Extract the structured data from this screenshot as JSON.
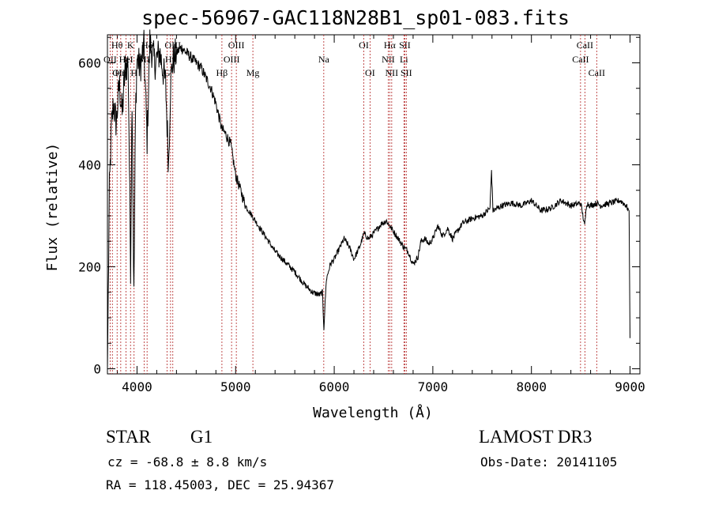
{
  "header": {
    "title": "spec-56967-GAC118N28B1_sp01-083.fits"
  },
  "info": {
    "class": "STAR",
    "subclass": "G1",
    "survey": "LAMOST DR3",
    "cz": "cz = -68.8 ± 8.8 km/s",
    "obs_date": "Obs-Date: 20141105",
    "radec": "RA = 118.45003, DEC =  25.94367"
  },
  "chart_data": {
    "type": "line",
    "title": "spec-56967-GAC118N28B1_sp01-083.fits",
    "xlabel": "Wavelength (Å)",
    "ylabel": "Flux (relative)",
    "xlim": [
      3700,
      9100
    ],
    "ylim": [
      -10,
      655
    ],
    "xticks": [
      4000,
      5000,
      6000,
      7000,
      8000,
      9000
    ],
    "yticks": [
      0,
      200,
      400,
      600
    ],
    "colors": {
      "line": "#000000",
      "marker": "#b22222"
    },
    "series": [
      {
        "name": "flux",
        "x": [
          3700,
          3720,
          3740,
          3760,
          3790,
          3820,
          3850,
          3880,
          3910,
          3935,
          3950,
          3968,
          3985,
          4000,
          4030,
          4070,
          4102,
          4130,
          4180,
          4230,
          4290,
          4320,
          4340,
          4360,
          4400,
          4450,
          4500,
          4550,
          4600,
          4650,
          4700,
          4750,
          4800,
          4861,
          4900,
          4950,
          5000,
          5050,
          5100,
          5200,
          5300,
          5400,
          5500,
          5600,
          5700,
          5780,
          5850,
          5880,
          5895,
          5920,
          5960,
          6000,
          6050,
          6100,
          6150,
          6200,
          6260,
          6300,
          6350,
          6420,
          6480,
          6530,
          6563,
          6600,
          6650,
          6700,
          6750,
          6800,
          6850,
          6880,
          6920,
          6960,
          7000,
          7050,
          7100,
          7150,
          7200,
          7300,
          7400,
          7500,
          7580,
          7595,
          7610,
          7700,
          7800,
          7900,
          8000,
          8100,
          8200,
          8300,
          8400,
          8500,
          8540,
          8560,
          8600,
          8662,
          8700,
          8800,
          8900,
          8960,
          8990,
          9000
        ],
        "y": [
          0,
          350,
          470,
          520,
          480,
          560,
          500,
          590,
          600,
          200,
          540,
          140,
          500,
          610,
          590,
          630,
          450,
          640,
          600,
          620,
          560,
          400,
          560,
          600,
          620,
          630,
          620,
          610,
          600,
          590,
          570,
          550,
          520,
          470,
          460,
          440,
          380,
          350,
          320,
          290,
          260,
          230,
          210,
          190,
          165,
          150,
          145,
          150,
          80,
          175,
          205,
          215,
          235,
          255,
          240,
          215,
          240,
          265,
          255,
          270,
          285,
          290,
          280,
          270,
          255,
          240,
          230,
          205,
          220,
          250,
          255,
          245,
          255,
          280,
          260,
          275,
          255,
          285,
          295,
          300,
          315,
          390,
          310,
          320,
          325,
          320,
          330,
          310,
          315,
          330,
          320,
          325,
          280,
          325,
          320,
          325,
          320,
          325,
          330,
          320,
          310,
          60
        ]
      }
    ],
    "lines": [
      {
        "wl": 3727,
        "label": "OII",
        "row": 2,
        "anchor": "middle"
      },
      {
        "wl": 3750,
        "label": "OII",
        "row": 3,
        "anchor": "start"
      },
      {
        "wl": 3798,
        "label": "Hθ",
        "row": 1,
        "anchor": "middle"
      },
      {
        "wl": 3835,
        "label": "Hη",
        "row": 3,
        "anchor": "middle"
      },
      {
        "wl": 3889,
        "label": "HeI",
        "row": 2,
        "anchor": "middle"
      },
      {
        "wl": 3934,
        "label": "K",
        "row": 1,
        "anchor": "middle"
      },
      {
        "wl": 3970,
        "label": "H",
        "row": 3,
        "anchor": "middle"
      },
      {
        "wl": 4072,
        "label": "SII",
        "row": 2,
        "anchor": "middle"
      },
      {
        "wl": 4102,
        "label": "Hδ",
        "row": 1,
        "anchor": "middle"
      },
      {
        "wl": 4304,
        "label": "G",
        "row": 3,
        "anchor": "middle"
      },
      {
        "wl": 4340,
        "label": "Hγ",
        "row": 2,
        "anchor": "middle"
      },
      {
        "wl": 4363,
        "label": "OIII",
        "row": 1,
        "anchor": "middle"
      },
      {
        "wl": 4861,
        "label": "Hβ",
        "row": 3,
        "anchor": "middle"
      },
      {
        "wl": 4959,
        "label": "OIII",
        "row": 2,
        "anchor": "middle"
      },
      {
        "wl": 5007,
        "label": "OIII",
        "row": 1,
        "anchor": "middle"
      },
      {
        "wl": 5175,
        "label": "Mg",
        "row": 3,
        "anchor": "middle"
      },
      {
        "wl": 5894,
        "label": "Na",
        "row": 2,
        "anchor": "middle"
      },
      {
        "wl": 6300,
        "label": "OI",
        "row": 1,
        "anchor": "middle"
      },
      {
        "wl": 6363,
        "label": "OI",
        "row": 3,
        "anchor": "middle"
      },
      {
        "wl": 6548,
        "label": "NII",
        "row": 2,
        "anchor": "middle"
      },
      {
        "wl": 6563,
        "label": "Hα",
        "row": 1,
        "anchor": "middle"
      },
      {
        "wl": 6583,
        "label": "NII",
        "row": 3,
        "anchor": "middle"
      },
      {
        "wl": 6707,
        "label": "Li",
        "row": 2,
        "anchor": "middle"
      },
      {
        "wl": 6716,
        "label": "SII",
        "row": 1,
        "anchor": "middle"
      },
      {
        "wl": 6731,
        "label": "SII",
        "row": 3,
        "anchor": "middle"
      },
      {
        "wl": 8498,
        "label": "CaII",
        "row": 2,
        "anchor": "middle"
      },
      {
        "wl": 8542,
        "label": "CaII",
        "row": 1,
        "anchor": "middle"
      },
      {
        "wl": 8662,
        "label": "CaII",
        "row": 3,
        "anchor": "middle"
      }
    ]
  }
}
